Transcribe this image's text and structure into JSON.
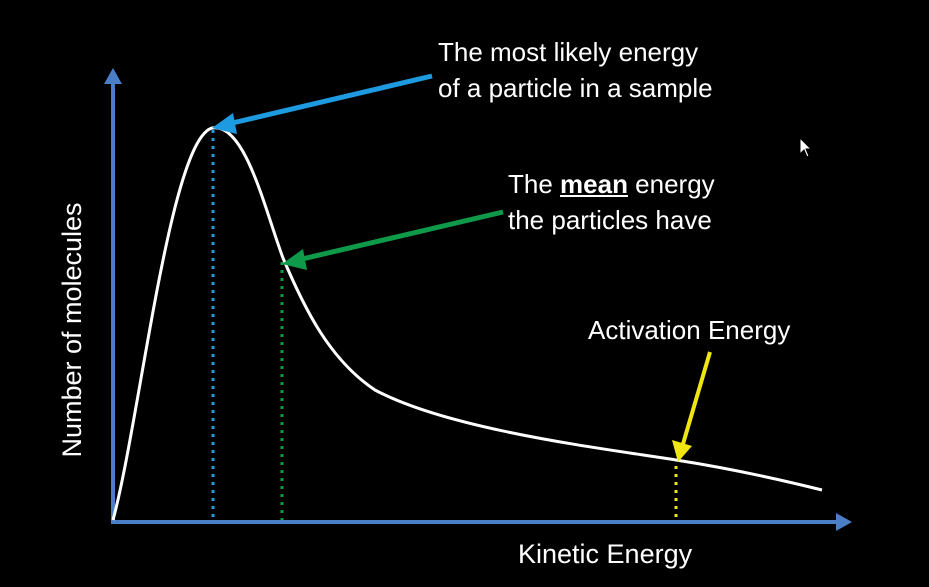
{
  "diagram": {
    "type": "line",
    "title": "",
    "axes": {
      "x_label": "Kinetic Energy",
      "y_label": "Number of molecules"
    },
    "curve_color": "#ffffff",
    "axis_color": "#4a7fc7",
    "annotations": [
      {
        "id": "most-likely",
        "lines": [
          "The most likely energy",
          "of a particle in a sample"
        ],
        "color": "#1e9be0"
      },
      {
        "id": "mean",
        "pre": "The ",
        "emphasis": "mean",
        "post": " energy",
        "line2": "the particles have",
        "color": "#0f9a4a"
      },
      {
        "id": "activation",
        "text": "Activation Energy",
        "color": "#f0e611"
      }
    ]
  }
}
